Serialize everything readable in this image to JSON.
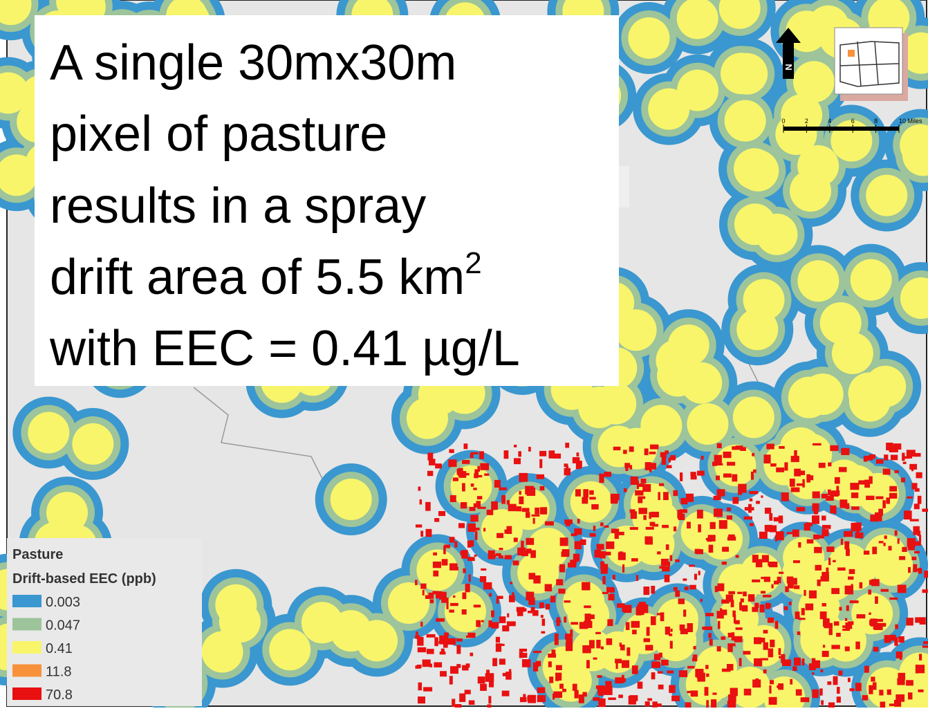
{
  "callout": {
    "lines": [
      "A single 30mx30m",
      "pixel of pasture",
      "results in a spray",
      "drift area of 5.5 km",
      "with EEC = 0.41 µg/L"
    ],
    "superscript": "2"
  },
  "north_arrow": {
    "label": "N"
  },
  "scale_bar": {
    "labels": [
      "0",
      "2",
      "4",
      "6",
      "8",
      "10 Miles"
    ]
  },
  "legend": {
    "title": "Pasture",
    "subtitle": "Drift-based EEC (ppb)",
    "items": [
      {
        "label": "0.003",
        "color": "#3a97cf"
      },
      {
        "label": "0.047",
        "color": "#9dc49a"
      },
      {
        "label": "0.41",
        "color": "#f8f56a"
      },
      {
        "label": "11.8",
        "color": "#f7923a"
      },
      {
        "label": "70.8",
        "color": "#e81010"
      }
    ]
  }
}
